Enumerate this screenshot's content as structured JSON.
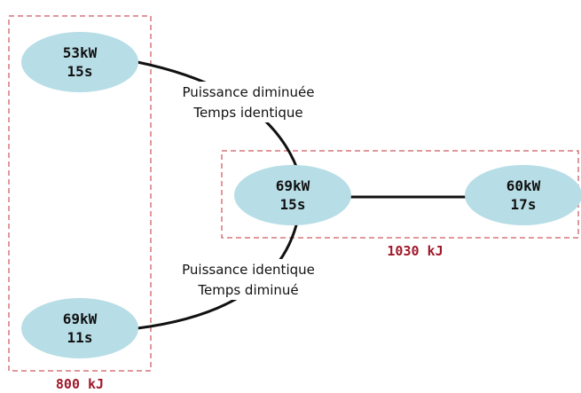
{
  "nodes": [
    {
      "power": "53kW",
      "time": "15s"
    },
    {
      "power": "69kW",
      "time": "11s"
    },
    {
      "power": "69kW",
      "time": "15s"
    },
    {
      "power": "60kW",
      "time": "17s"
    }
  ],
  "edges": [
    {
      "line1": "Puissance diminuée",
      "line2": "Temps identique"
    },
    {
      "line1": "Puissance identique",
      "line2": "Temps diminué"
    }
  ],
  "groups": [
    {
      "energy": "800 kJ"
    },
    {
      "energy": "1030 kJ"
    }
  ]
}
